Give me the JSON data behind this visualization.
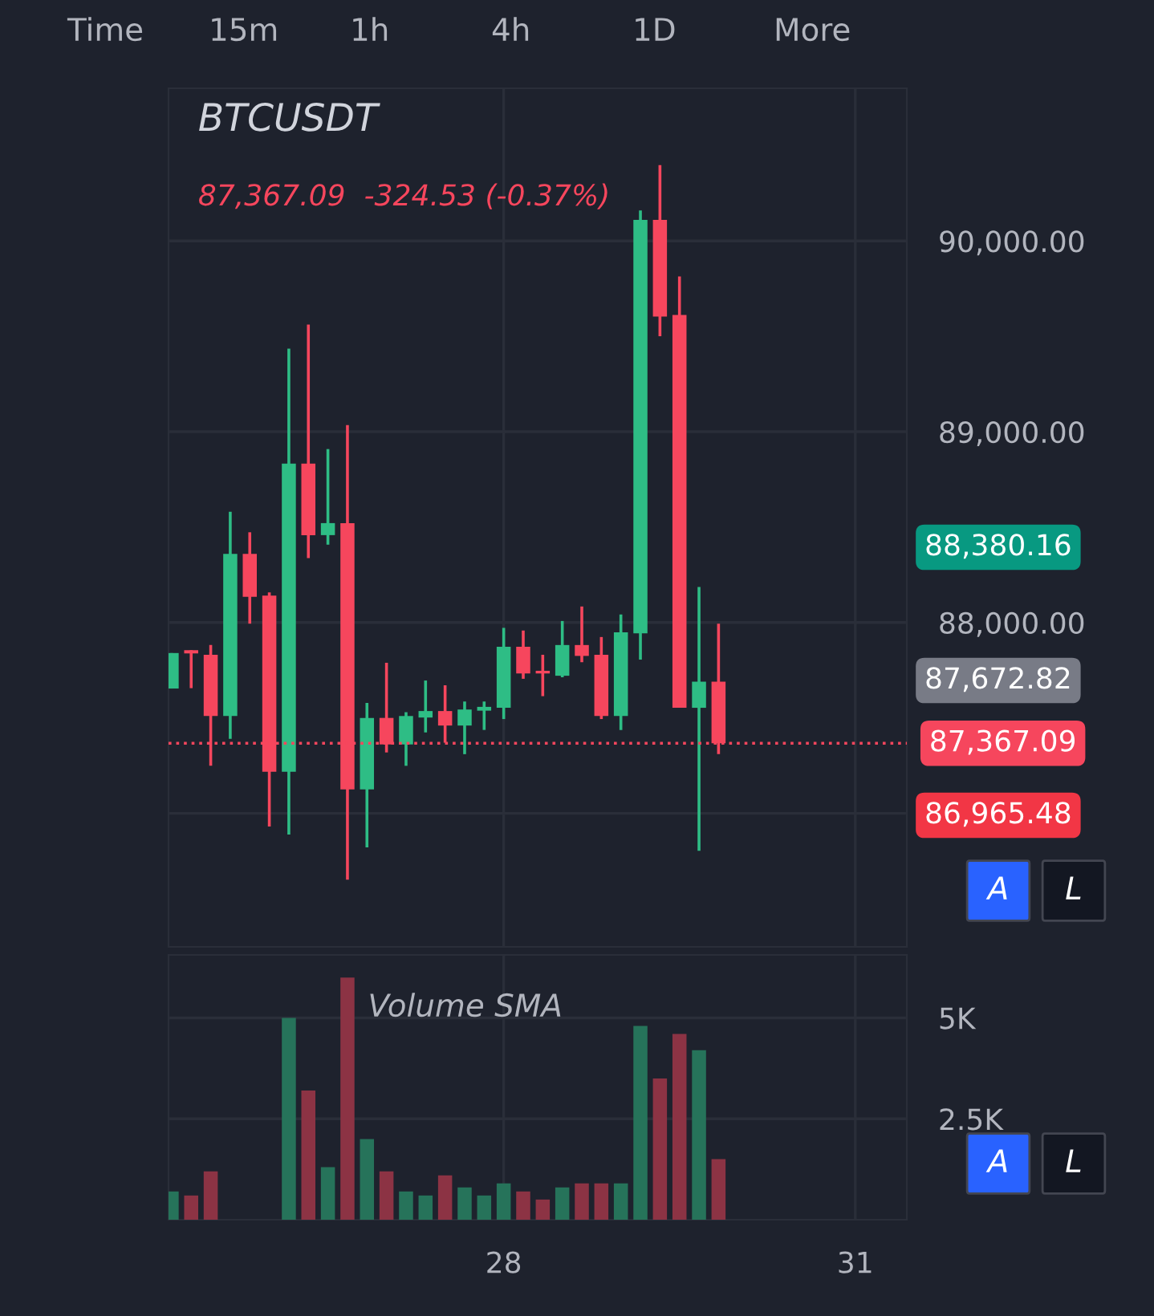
{
  "chart_data": [
    {
      "type": "candlestick",
      "title": "BTCUSDT",
      "subtitle": "87,367.09  -324.53 (-0.37%)",
      "x": [
        25.1667,
        25.3333,
        25.5,
        25.6667,
        25.8333,
        26.0,
        26.1667,
        26.3333,
        26.5,
        26.6667,
        26.8333,
        27.0,
        27.1667,
        27.3333,
        27.5,
        27.6667,
        27.8333,
        28.0,
        28.1667,
        28.3333,
        28.5,
        28.6667,
        28.8333,
        29.0,
        29.1667,
        29.3333,
        29.5,
        29.6667,
        29.8333
      ],
      "ohlc": [
        [
          87654,
          87840,
          87654,
          87840
        ],
        [
          87855,
          87855,
          87656,
          87838
        ],
        [
          87831,
          87882,
          87249,
          87510
        ],
        [
          87510,
          88580,
          87390,
          88360
        ],
        [
          88360,
          88473,
          87994,
          88135
        ],
        [
          88141,
          88158,
          86931,
          87218
        ],
        [
          87218,
          89435,
          86889,
          88833
        ],
        [
          88833,
          89561,
          88338,
          88458
        ],
        [
          88458,
          88909,
          88408,
          88521
        ],
        [
          88521,
          89035,
          86652,
          87125
        ],
        [
          87125,
          87578,
          86821,
          87500
        ],
        [
          87500,
          87789,
          87319,
          87361
        ],
        [
          87361,
          87530,
          87249,
          87510
        ],
        [
          87502,
          87696,
          87424,
          87536
        ],
        [
          87536,
          87671,
          87370,
          87460
        ],
        [
          87460,
          87586,
          87310,
          87544
        ],
        [
          87538,
          87586,
          87437,
          87558
        ],
        [
          87553,
          87972,
          87494,
          87873
        ],
        [
          87873,
          87958,
          87705,
          87733
        ],
        [
          87747,
          87831,
          87614,
          87733
        ],
        [
          87721,
          88008,
          87713,
          87882
        ],
        [
          87882,
          88084,
          87792,
          87825
        ],
        [
          87831,
          87924,
          87494,
          87510
        ],
        [
          87510,
          88042,
          87437,
          87949
        ],
        [
          87943,
          90160,
          87806,
          90110
        ],
        [
          90110,
          90397,
          89500,
          89603
        ],
        [
          89612,
          89814,
          87553,
          87553
        ],
        [
          87553,
          88186,
          86804,
          87690
        ],
        [
          87690,
          87994,
          87310,
          87367
        ]
      ],
      "colors": [
        "#2ebd85",
        "#f6465d",
        "#f6465d",
        "#2ebd85",
        "#f6465d",
        "#f6465d",
        "#2ebd85",
        "#f6465d",
        "#2ebd85",
        "#f6465d",
        "#2ebd85",
        "#f6465d",
        "#2ebd85",
        "#2ebd85",
        "#f6465d",
        "#2ebd85",
        "#2ebd85",
        "#2ebd85",
        "#f6465d",
        "#f6465d",
        "#2ebd85",
        "#f6465d",
        "#f6465d",
        "#2ebd85",
        "#2ebd85",
        "#f6465d",
        "#f6465d",
        "#2ebd85",
        "#f6465d"
      ],
      "xlim": [
        25.14,
        31.44
      ],
      "ylim": [
        86300,
        90800
      ],
      "yticks": [
        {
          "value": 87000,
          "label": null
        },
        {
          "value": 88000,
          "label": "88,000.00"
        },
        {
          "value": 89000,
          "label": "89,000.00"
        },
        {
          "value": 90000,
          "label": "90,000.00"
        }
      ],
      "tick_labels": "y",
      "grid": true,
      "ref_lines": [
        {
          "axis": "y",
          "value": 87367.09,
          "label": "87,367.09",
          "color": "#f6465d",
          "line_style": "dotted"
        }
      ],
      "annotations": [
        "Time",
        "15m",
        "1h",
        "4h",
        "1D",
        "More",
        "A",
        "L",
        "88,380.16",
        "87,672.82",
        "86,965.48"
      ]
    },
    {
      "type": "bar",
      "title": "Volume SMA",
      "x": [
        25.1667,
        25.3333,
        25.5,
        25.6667,
        25.8333,
        26.0,
        26.1667,
        26.3333,
        26.5,
        26.6667,
        26.8333,
        27.0,
        27.1667,
        27.3333,
        27.5,
        27.6667,
        27.8333,
        28.0,
        28.1667,
        28.3333,
        28.5,
        28.6667,
        28.8333,
        29.0,
        29.1667,
        29.3333,
        29.5,
        29.6667,
        29.8333
      ],
      "values": [
        700,
        600,
        1200,
        null,
        null,
        null,
        5000,
        3200,
        1300,
        6000,
        2000,
        1200,
        700,
        600,
        1100,
        800,
        600,
        900,
        700,
        500,
        800,
        900,
        900,
        900,
        4800,
        3500,
        4600,
        4200,
        1500
      ],
      "colors": [
        "#26735a",
        "#8c3344",
        "#8c3344",
        "#26735a",
        "#8c3344",
        "#8c3344",
        "#26735a",
        "#8c3344",
        "#26735a",
        "#8c3344",
        "#26735a",
        "#8c3344",
        "#26735a",
        "#26735a",
        "#8c3344",
        "#26735a",
        "#26735a",
        "#26735a",
        "#8c3344",
        "#8c3344",
        "#26735a",
        "#8c3344",
        "#8c3344",
        "#26735a",
        "#26735a",
        "#8c3344",
        "#8c3344",
        "#26735a",
        "#8c3344"
      ],
      "xlim": [
        25.14,
        31.44
      ],
      "ylim": [
        0,
        6560
      ],
      "xticks": [
        28,
        31
      ],
      "yticks": [
        {
          "value": 2500,
          "label": "2.5K"
        },
        {
          "value": 5000,
          "label": "5K"
        }
      ],
      "grid": true,
      "annotations": [
        "A",
        "L"
      ]
    }
  ]
}
